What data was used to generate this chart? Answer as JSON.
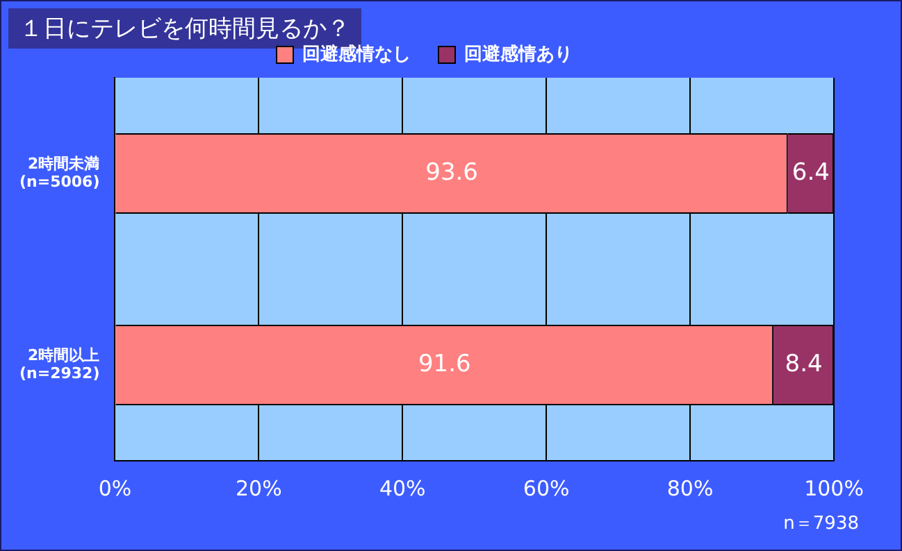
{
  "chart_data": {
    "type": "bar",
    "orientation": "horizontal",
    "stacked": true,
    "title": "１日にテレビを何時間見るか？",
    "categories": [
      "2時間未満\n(n=5006)",
      "2時間以上\n(n=2932)"
    ],
    "series": [
      {
        "name": "回避感情なし",
        "color": "#ff8080",
        "values": [
          93.6,
          91.6
        ]
      },
      {
        "name": "回避感情あり",
        "color": "#993366",
        "values": [
          6.4,
          8.4
        ]
      }
    ],
    "xlim": [
      0,
      100
    ],
    "xticks": [
      {
        "value": 0,
        "label": "0%"
      },
      {
        "value": 20,
        "label": "20%"
      },
      {
        "value": 40,
        "label": "40%"
      },
      {
        "value": 60,
        "label": "60%"
      },
      {
        "value": 80,
        "label": "80%"
      },
      {
        "value": 100,
        "label": "100%"
      }
    ],
    "grid": "x",
    "legend": "top",
    "data_labels": true,
    "annotations": [
      "n＝7938"
    ]
  }
}
